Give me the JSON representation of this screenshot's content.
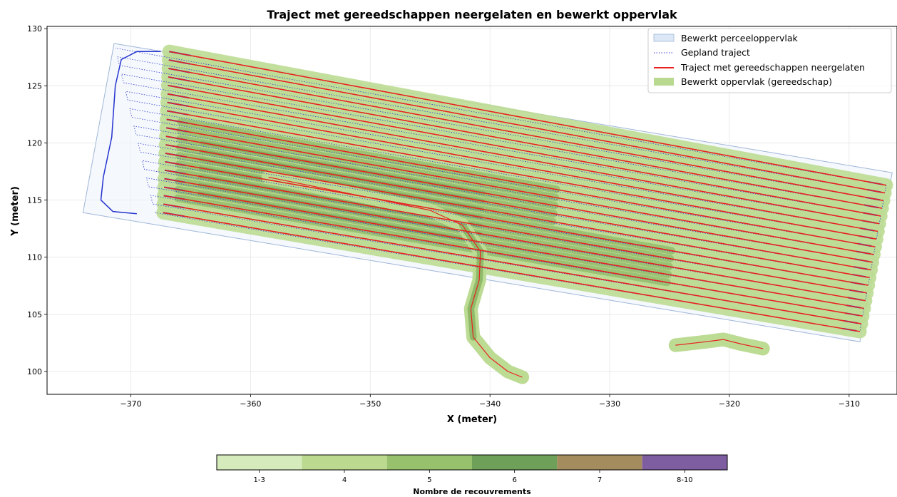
{
  "chart_data": {
    "type": "line",
    "title": "Traject met gereedschappen neergelaten en bewerkt oppervlak",
    "xlabel": "X (meter)",
    "ylabel": "Y (meter)",
    "xlim": [
      -377,
      -306
    ],
    "ylim": [
      98,
      130.2
    ],
    "xticks": [
      -370,
      -360,
      -350,
      -340,
      -330,
      -320,
      -310
    ],
    "xtick_labels": [
      "−370",
      "−360",
      "−350",
      "−340",
      "−330",
      "−320",
      "−310"
    ],
    "yticks": [
      100,
      105,
      110,
      115,
      120,
      125,
      130
    ],
    "ytick_labels": [
      "100",
      "105",
      "110",
      "115",
      "120",
      "125",
      "130"
    ],
    "grid": true,
    "legend_position": "top-right",
    "legend": [
      {
        "label": "Bewerkt perceeloppervlak",
        "style": "patch-light",
        "color": "#dce8f5"
      },
      {
        "label": "Gepland traject",
        "style": "dotted-line",
        "color": "#2f3ed6"
      },
      {
        "label": "Traject met gereedschappen neergelaten",
        "style": "line",
        "color": "#e8221f"
      },
      {
        "label": "Bewerkt oppervlak (gereedschap)",
        "style": "patch",
        "color": "#b8d98f"
      }
    ],
    "field_polygon": [
      [
        -371.4,
        128.7
      ],
      [
        -306.4,
        117.4
      ],
      [
        -309.1,
        102.6
      ],
      [
        -374.0,
        113.9
      ]
    ],
    "passes": {
      "count": 20,
      "left_start": [
        -368.0,
        113.9
      ],
      "left_end": [
        -371.3,
        128.3
      ],
      "right_start": [
        -309.1,
        103.5
      ],
      "right_end": [
        -306.9,
        116.3
      ],
      "drop_start": [
        -367.3,
        113.9
      ],
      "drop_end": [
        -366.8,
        128.0
      ]
    },
    "headland_path": [
      [
        -367.5,
        128.0
      ],
      [
        -369.5,
        128.0
      ],
      [
        -370.8,
        127.3
      ],
      [
        -371.3,
        125.0
      ],
      [
        -371.6,
        120.5
      ],
      [
        -372.3,
        117.0
      ],
      [
        -372.5,
        115.0
      ],
      [
        -371.5,
        114.0
      ],
      [
        -369.5,
        113.8
      ]
    ],
    "diagonal_path": [
      [
        -358.5,
        117.0
      ],
      [
        -350.0,
        115.2
      ],
      [
        -345.0,
        114.1
      ],
      [
        -342.3,
        112.8
      ],
      [
        -340.8,
        110.5
      ],
      [
        -340.9,
        108.0
      ],
      [
        -341.6,
        105.5
      ],
      [
        -341.4,
        103.0
      ],
      [
        -340.0,
        101.2
      ],
      [
        -338.5,
        100.0
      ],
      [
        -337.3,
        99.5
      ]
    ],
    "stray_path": [
      [
        -324.5,
        102.3
      ],
      [
        -322.0,
        102.6
      ],
      [
        -320.5,
        102.8
      ],
      [
        -319.0,
        102.4
      ],
      [
        -317.2,
        102.0
      ]
    ],
    "colorbar": {
      "label": "Nombre de recouvrements",
      "categories": [
        "1-3",
        "4",
        "5",
        "6",
        "7",
        "8-10"
      ],
      "colors": [
        "#d6ebbb",
        "#bbd98f",
        "#98c16e",
        "#6fa05a",
        "#a58c5f",
        "#7e5ea1"
      ]
    }
  }
}
